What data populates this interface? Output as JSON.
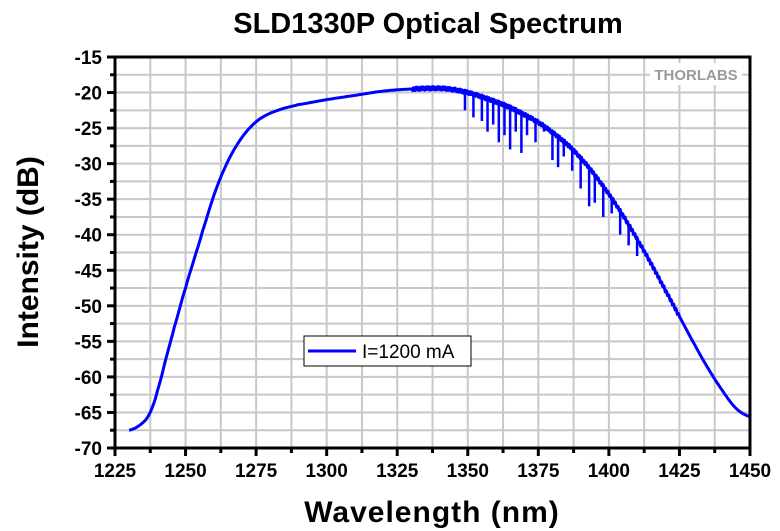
{
  "chart_data": {
    "type": "line",
    "title": "SLD1330P Optical Spectrum",
    "xlabel": "Wavelength (nm)",
    "ylabel": "Intensity (dB)",
    "xlim": [
      1225,
      1450
    ],
    "ylim": [
      -70,
      -15
    ],
    "x_ticks": [
      1225,
      1250,
      1275,
      1300,
      1325,
      1350,
      1375,
      1400,
      1425,
      1450
    ],
    "x_tick_labels": [
      "1225",
      "1250",
      "1275",
      "1300",
      "1325",
      "1350",
      "1375",
      "1400",
      "1425",
      "1450"
    ],
    "y_ticks": [
      -15,
      -20,
      -25,
      -30,
      -35,
      -40,
      -45,
      -50,
      -55,
      -60,
      -65,
      -70
    ],
    "y_tick_labels": [
      "-15",
      "-20",
      "-25",
      "-30",
      "-35",
      "-40",
      "-45",
      "-50",
      "-55",
      "-60",
      "-65",
      "-70"
    ],
    "grid": true,
    "legend_position": "lower-center",
    "watermark": "THORLABS",
    "series": [
      {
        "name": "I=1200 mA",
        "color": "#0000ff",
        "envelope": {
          "x": [
            1230,
            1233,
            1236,
            1238,
            1240,
            1243,
            1246,
            1250,
            1253,
            1256,
            1260,
            1264,
            1268,
            1272,
            1276,
            1280,
            1285,
            1290,
            1300,
            1310,
            1320,
            1330,
            1340,
            1345,
            1350,
            1355,
            1360,
            1365,
            1370,
            1375,
            1380,
            1385,
            1390,
            1395,
            1400,
            1405,
            1410,
            1415,
            1420,
            1425,
            1430,
            1435,
            1440,
            1445,
            1450
          ],
          "y": [
            -67.5,
            -67.0,
            -66.0,
            -64.5,
            -62.0,
            -57.5,
            -53.0,
            -47.5,
            -43.5,
            -39.5,
            -34.5,
            -30.5,
            -27.5,
            -25.3,
            -23.8,
            -22.9,
            -22.2,
            -21.7,
            -21.0,
            -20.4,
            -19.8,
            -19.5,
            -19.4,
            -19.6,
            -20.0,
            -20.6,
            -21.3,
            -22.1,
            -23.1,
            -24.2,
            -25.6,
            -27.2,
            -29.2,
            -31.6,
            -34.3,
            -37.3,
            -40.6,
            -44.1,
            -47.8,
            -51.5,
            -55.2,
            -58.7,
            -61.8,
            -64.4,
            -65.6
          ]
        },
        "dips": {
          "x": [
            1349,
            1352,
            1355,
            1357,
            1359,
            1361,
            1363,
            1365,
            1367,
            1369,
            1371,
            1374,
            1377,
            1380,
            1382,
            1384,
            1387,
            1390,
            1393,
            1395,
            1398,
            1401,
            1404,
            1407,
            1410
          ],
          "y": [
            -22.5,
            -23.5,
            -24.0,
            -25.5,
            -24.5,
            -27.0,
            -26.0,
            -28.0,
            -25.5,
            -28.5,
            -26.0,
            -27.0,
            -25.5,
            -29.5,
            -30.5,
            -29.0,
            -31.0,
            -33.5,
            -36.0,
            -35.5,
            -37.5,
            -37.0,
            -40.0,
            -41.5,
            -43.0
          ]
        }
      }
    ]
  }
}
